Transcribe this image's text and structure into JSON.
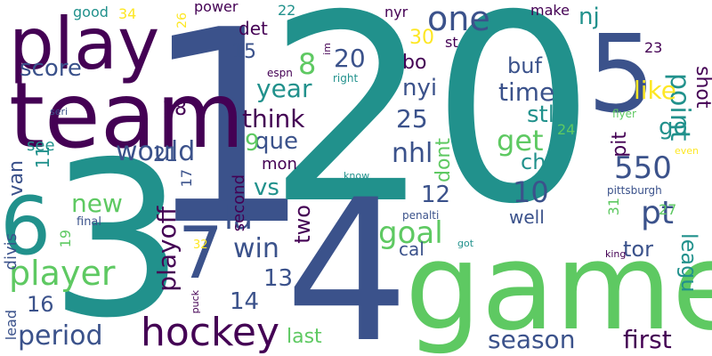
{
  "background": "#ffffff",
  "palette": [
    "#440154",
    "#3b528b",
    "#21918c",
    "#5ec962",
    "#fde725"
  ],
  "words": [
    {
      "text": "1"
    },
    {
      "text": "20"
    },
    {
      "text": "3"
    },
    {
      "text": "game"
    },
    {
      "text": "4"
    },
    {
      "text": "team"
    },
    {
      "text": "play"
    },
    {
      "text": "5"
    },
    {
      "text": "6"
    },
    {
      "text": "7"
    },
    {
      "text": "hockey"
    },
    {
      "text": "player"
    },
    {
      "text": "season"
    },
    {
      "text": "period"
    },
    {
      "text": "playoff"
    },
    {
      "text": "first"
    },
    {
      "text": "pt"
    },
    {
      "text": "win"
    },
    {
      "text": "year"
    },
    {
      "text": "goal"
    },
    {
      "text": "would"
    },
    {
      "text": "nhl"
    },
    {
      "text": "550"
    },
    {
      "text": "la"
    },
    {
      "text": "score"
    },
    {
      "text": "get"
    },
    {
      "text": "think"
    },
    {
      "text": "one"
    },
    {
      "text": "10"
    },
    {
      "text": "point"
    },
    {
      "text": "time"
    },
    {
      "text": "new"
    },
    {
      "text": "like"
    },
    {
      "text": "nyi"
    },
    {
      "text": "25"
    },
    {
      "text": "20"
    },
    {
      "text": "8"
    },
    {
      "text": "que"
    },
    {
      "text": "last"
    },
    {
      "text": "two"
    },
    {
      "text": "stl"
    },
    {
      "text": "chi"
    },
    {
      "text": "buf"
    },
    {
      "text": "go"
    },
    {
      "text": "vs"
    },
    {
      "text": "van"
    },
    {
      "text": "tor"
    },
    {
      "text": "leagu"
    },
    {
      "text": "shot"
    },
    {
      "text": "14"
    },
    {
      "text": "13"
    },
    {
      "text": "12"
    },
    {
      "text": "bo"
    },
    {
      "text": "nj"
    },
    {
      "text": "16"
    },
    {
      "text": "15"
    },
    {
      "text": "21"
    },
    {
      "text": "9"
    },
    {
      "text": "det"
    },
    {
      "text": "18"
    },
    {
      "text": "pit"
    },
    {
      "text": "dont"
    },
    {
      "text": "30"
    },
    {
      "text": "11"
    },
    {
      "text": "second"
    },
    {
      "text": "well"
    },
    {
      "text": "cal"
    },
    {
      "text": "divis"
    },
    {
      "text": "see"
    },
    {
      "text": "mon"
    },
    {
      "text": "good"
    },
    {
      "text": "make"
    },
    {
      "text": "power"
    },
    {
      "text": "nyr"
    },
    {
      "text": "st"
    },
    {
      "text": "lead"
    },
    {
      "text": "34"
    },
    {
      "text": "26"
    },
    {
      "text": "22"
    },
    {
      "text": "23"
    },
    {
      "text": "24"
    },
    {
      "text": "27"
    },
    {
      "text": "31"
    },
    {
      "text": "19"
    },
    {
      "text": "17"
    },
    {
      "text": "32"
    },
    {
      "text": "final"
    },
    {
      "text": "espn"
    },
    {
      "text": "right"
    },
    {
      "text": "im"
    },
    {
      "text": "seri"
    },
    {
      "text": "flyer"
    },
    {
      "text": "even"
    },
    {
      "text": "pittsburgh"
    },
    {
      "text": "know"
    },
    {
      "text": "penalti"
    },
    {
      "text": "got"
    },
    {
      "text": "king"
    },
    {
      "text": "puck"
    }
  ]
}
